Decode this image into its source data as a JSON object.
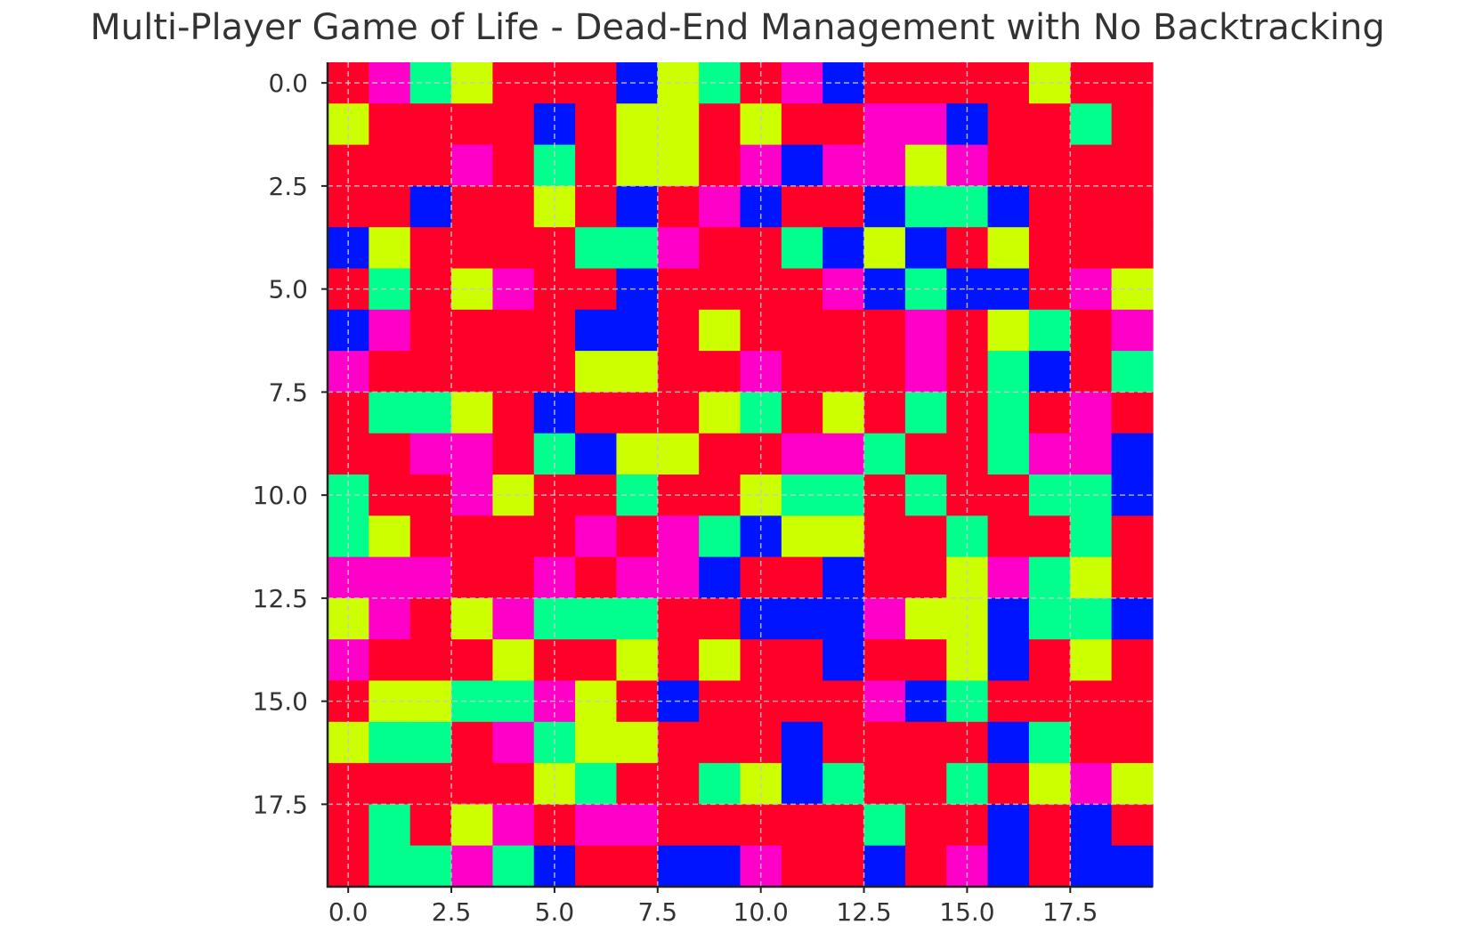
{
  "chart_data": {
    "type": "heatmap",
    "title": "Multi-Player Game of Life - Dead-End Management with No Backtracking",
    "xlabel": "",
    "ylabel": "",
    "rows": 20,
    "cols": 20,
    "xlim": [
      -0.5,
      19.5
    ],
    "ylim": [
      19.5,
      -0.5
    ],
    "x_ticks": [
      "0.0",
      "2.5",
      "5.0",
      "7.5",
      "10.0",
      "12.5",
      "15.0",
      "17.5"
    ],
    "y_ticks": [
      "0.0",
      "2.5",
      "5.0",
      "7.5",
      "10.0",
      "12.5",
      "15.0",
      "17.5"
    ],
    "tick_values": [
      0,
      2.5,
      5,
      7.5,
      10,
      12.5,
      15,
      17.5
    ],
    "grid": true,
    "colors": {
      "0": "#ff0028",
      "1": "#ff00c8",
      "2": "#00ff8c",
      "3": "#ccff00",
      "4": "#0014ff"
    },
    "cells": [
      [
        0,
        1,
        2,
        3,
        0,
        0,
        0,
        4,
        3,
        2,
        0,
        1,
        4,
        0,
        0,
        0,
        0,
        3,
        0,
        0
      ],
      [
        3,
        0,
        0,
        0,
        0,
        4,
        0,
        3,
        3,
        0,
        3,
        0,
        0,
        1,
        1,
        4,
        0,
        0,
        2,
        0
      ],
      [
        0,
        0,
        0,
        1,
        0,
        2,
        0,
        3,
        3,
        0,
        1,
        4,
        1,
        1,
        3,
        1,
        0,
        0,
        0,
        0
      ],
      [
        0,
        0,
        4,
        0,
        0,
        3,
        0,
        4,
        0,
        1,
        4,
        0,
        0,
        4,
        2,
        2,
        4,
        0,
        0,
        0
      ],
      [
        4,
        3,
        0,
        0,
        0,
        0,
        2,
        2,
        1,
        0,
        0,
        2,
        4,
        3,
        4,
        0,
        3,
        0,
        0,
        0
      ],
      [
        0,
        2,
        0,
        3,
        1,
        0,
        0,
        4,
        0,
        0,
        0,
        0,
        1,
        4,
        2,
        4,
        4,
        0,
        1,
        3
      ],
      [
        4,
        1,
        0,
        0,
        0,
        0,
        4,
        4,
        0,
        3,
        0,
        0,
        0,
        0,
        1,
        0,
        3,
        2,
        0,
        1
      ],
      [
        1,
        0,
        0,
        0,
        0,
        0,
        3,
        3,
        0,
        0,
        1,
        0,
        0,
        0,
        1,
        0,
        2,
        4,
        0,
        2
      ],
      [
        0,
        2,
        2,
        3,
        0,
        4,
        0,
        0,
        0,
        3,
        2,
        0,
        3,
        0,
        2,
        0,
        2,
        0,
        1,
        0
      ],
      [
        0,
        0,
        1,
        1,
        0,
        2,
        4,
        3,
        3,
        0,
        0,
        1,
        1,
        2,
        0,
        0,
        2,
        1,
        1,
        4
      ],
      [
        2,
        0,
        0,
        1,
        3,
        0,
        0,
        2,
        0,
        0,
        3,
        2,
        2,
        0,
        2,
        0,
        0,
        2,
        2,
        4
      ],
      [
        2,
        3,
        0,
        0,
        0,
        0,
        1,
        0,
        1,
        2,
        4,
        3,
        3,
        0,
        0,
        2,
        0,
        0,
        2,
        0
      ],
      [
        1,
        1,
        1,
        0,
        0,
        1,
        0,
        1,
        1,
        4,
        0,
        0,
        4,
        0,
        0,
        3,
        1,
        2,
        3,
        0
      ],
      [
        3,
        1,
        0,
        3,
        1,
        2,
        2,
        2,
        0,
        0,
        4,
        4,
        4,
        1,
        3,
        3,
        4,
        2,
        2,
        4
      ],
      [
        1,
        0,
        0,
        0,
        3,
        0,
        0,
        3,
        0,
        3,
        0,
        0,
        4,
        0,
        0,
        3,
        4,
        0,
        3,
        0
      ],
      [
        0,
        3,
        3,
        2,
        2,
        1,
        3,
        0,
        4,
        0,
        0,
        0,
        0,
        1,
        4,
        2,
        0,
        0,
        0,
        0
      ],
      [
        3,
        2,
        2,
        0,
        1,
        2,
        3,
        3,
        0,
        0,
        0,
        4,
        0,
        0,
        0,
        0,
        4,
        2,
        0,
        0
      ],
      [
        0,
        0,
        0,
        0,
        0,
        3,
        2,
        0,
        0,
        2,
        3,
        4,
        2,
        0,
        0,
        2,
        0,
        3,
        1,
        3
      ],
      [
        0,
        2,
        0,
        3,
        1,
        0,
        1,
        1,
        0,
        0,
        0,
        0,
        0,
        2,
        0,
        0,
        4,
        0,
        4,
        0
      ],
      [
        0,
        2,
        2,
        1,
        2,
        4,
        0,
        0,
        4,
        4,
        1,
        0,
        0,
        4,
        0,
        1,
        4,
        0,
        4,
        4
      ]
    ]
  }
}
